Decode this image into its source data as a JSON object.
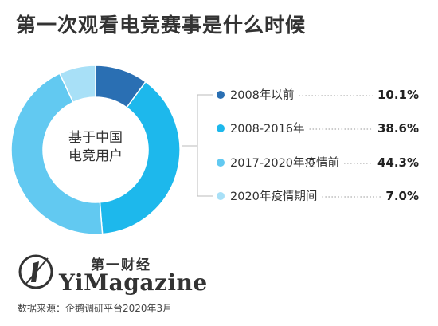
{
  "title": "第一次观看电竞赛事是什么时候",
  "center_label": [
    "基于中国",
    "电竞用户"
  ],
  "chart_data": {
    "type": "pie",
    "categories": [
      "2008年以前",
      "2008-2016年",
      "2017-2020年疫情前",
      "2020年疫情期间"
    ],
    "values": [
      10.1,
      38.6,
      44.3,
      7.0
    ],
    "value_labels": [
      "10.1%",
      "38.6%",
      "44.3%",
      "7.0%"
    ],
    "colors": [
      "#2a6fb3",
      "#1db8ec",
      "#62c9f1",
      "#a8e0f7"
    ],
    "donut": true,
    "legend_position": "right"
  },
  "brand": {
    "name_cn": "第一财经",
    "name_en": "YiMagazine"
  },
  "source": "数据来源：企鹅调研平台2020年3月"
}
